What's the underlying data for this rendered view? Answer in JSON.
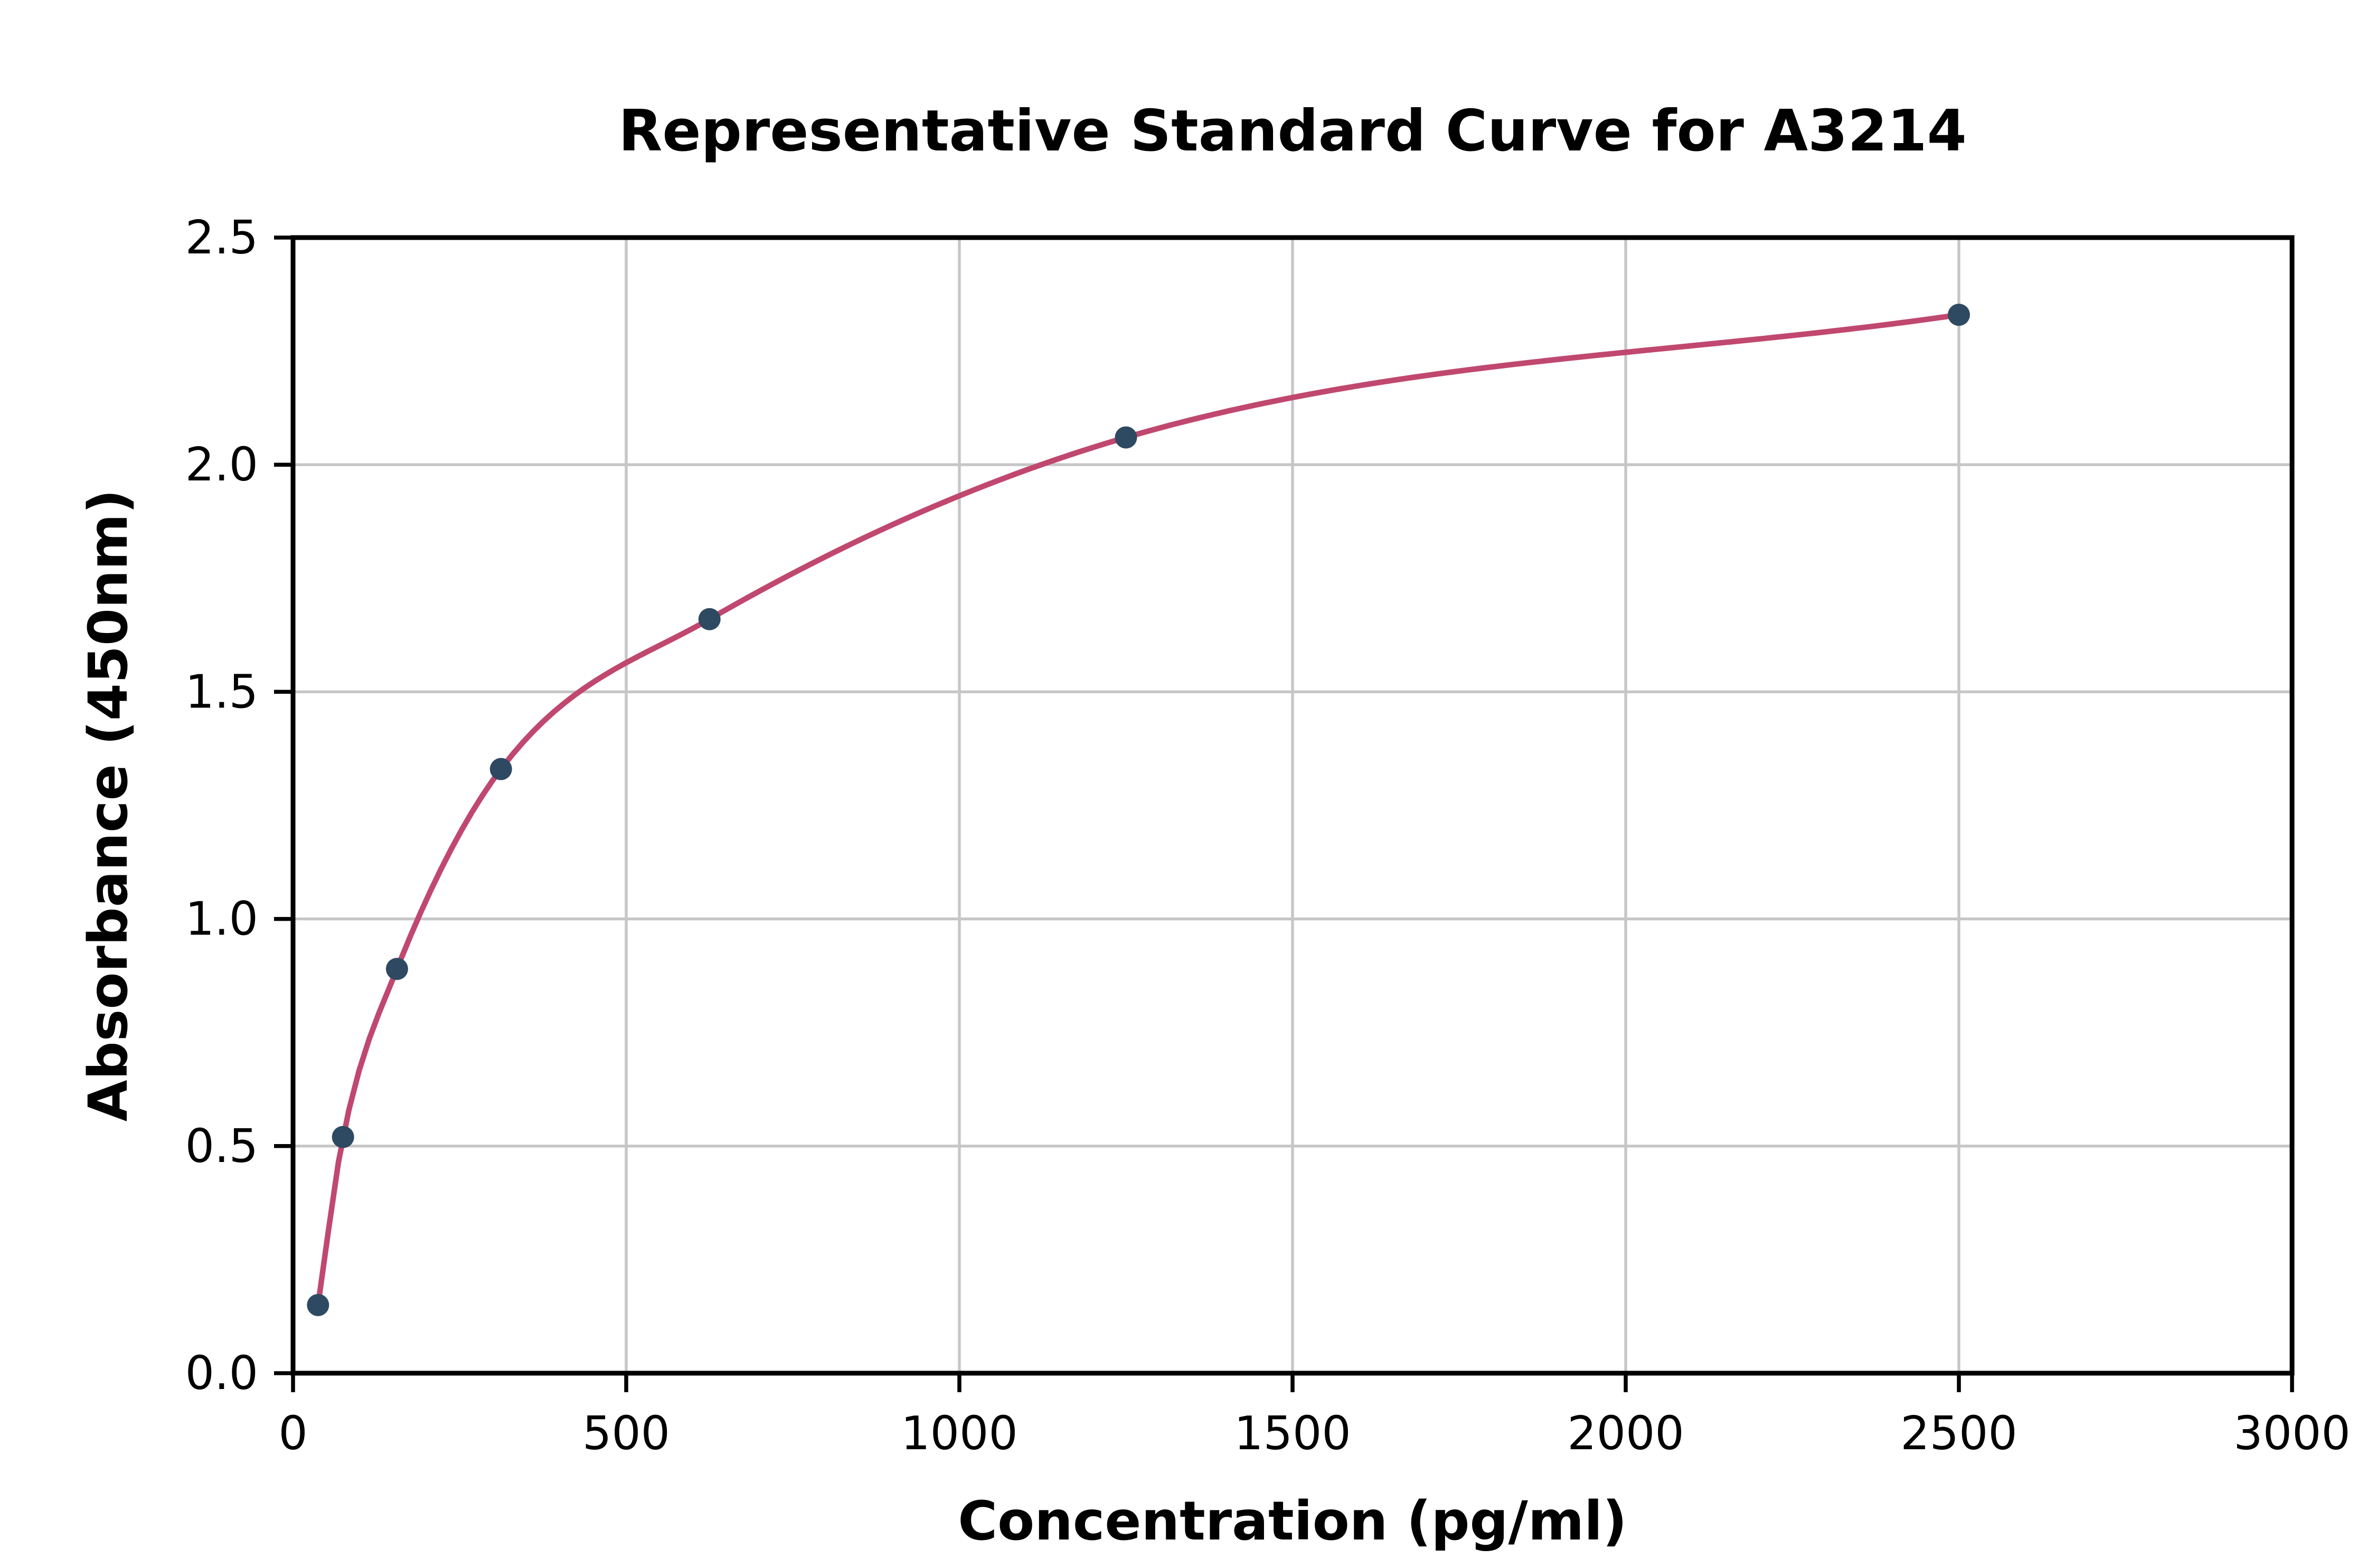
{
  "figure": {
    "background": "#ffffff"
  },
  "chart_data": {
    "type": "scatter",
    "title": "Representative Standard Curve for A3214",
    "xlabel": "Concentration (pg/ml)",
    "ylabel": "Absorbance (450nm)",
    "xlim": [
      0,
      3000
    ],
    "ylim": [
      0.0,
      2.5
    ],
    "x_ticks": [
      0,
      500,
      1000,
      1500,
      2000,
      2500,
      3000
    ],
    "x_tick_labels": [
      "0",
      "500",
      "1000",
      "1500",
      "2000",
      "2500",
      "3000"
    ],
    "y_ticks": [
      0.0,
      0.5,
      1.0,
      1.5,
      2.0,
      2.5
    ],
    "y_tick_labels": [
      "0.0",
      "0.5",
      "1.0",
      "1.5",
      "2.0",
      "2.5"
    ],
    "grid": true,
    "legend": false,
    "points": [
      {
        "x": 37.5,
        "y": 0.15
      },
      {
        "x": 75,
        "y": 0.52
      },
      {
        "x": 156,
        "y": 0.89
      },
      {
        "x": 312,
        "y": 1.33
      },
      {
        "x": 625,
        "y": 1.66
      },
      {
        "x": 1250,
        "y": 2.06
      },
      {
        "x": 2500,
        "y": 2.33
      }
    ],
    "curve": "smooth fit through data points",
    "colors": {
      "line": "#c0486f",
      "point": "#2e4a62",
      "grid": "#c6c6c6",
      "axis": "#000000",
      "background": "#ffffff"
    }
  }
}
